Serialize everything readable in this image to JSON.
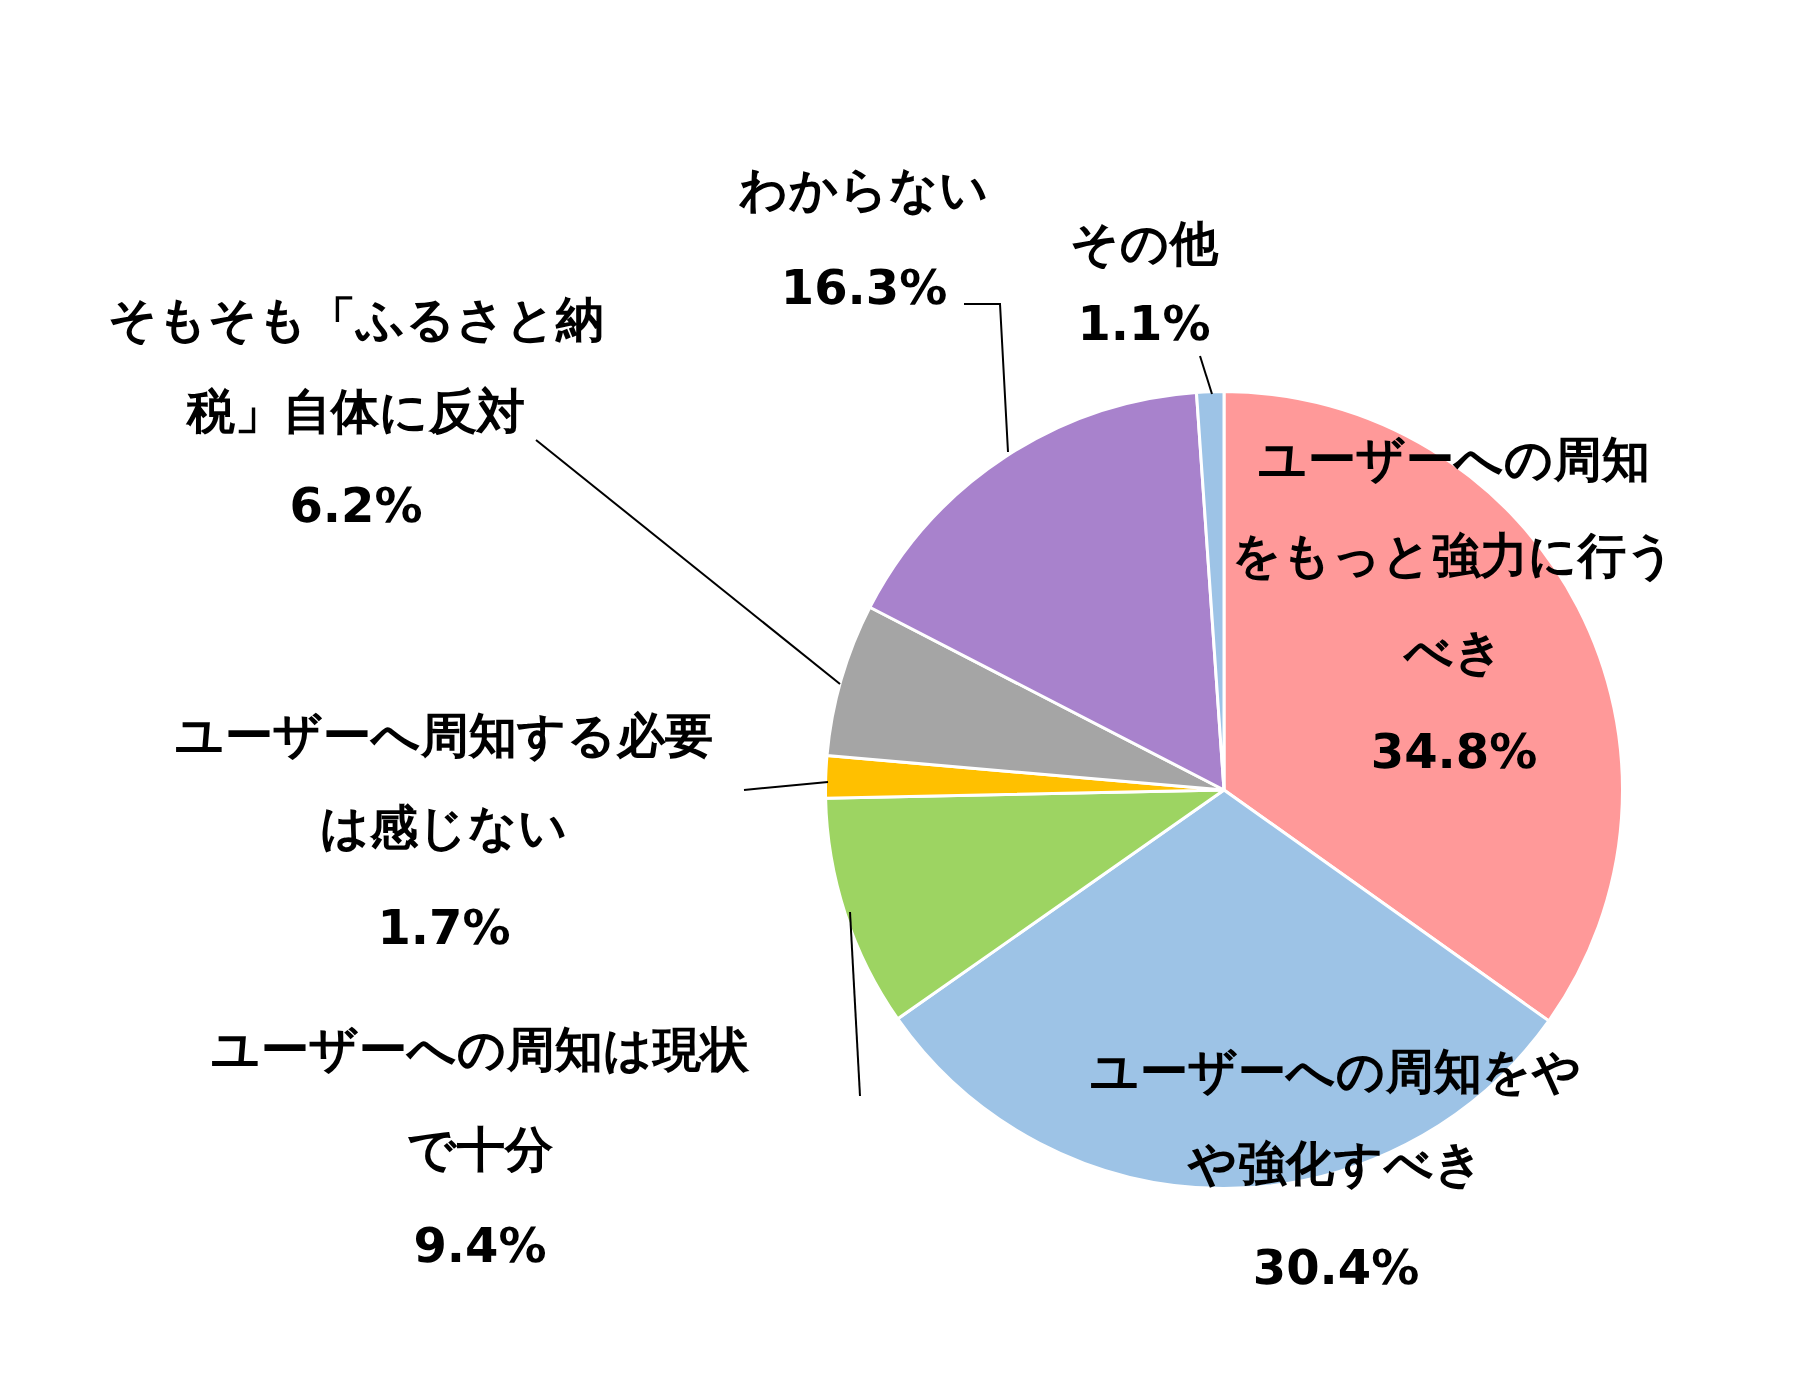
{
  "chart_data": {
    "type": "pie",
    "categories": [
      "ユーザーへの周知をもっと強力に行うべき",
      "ユーザーへの周知をやや強化すべき",
      "ユーザーへの周知は現状で十分",
      "ユーザーへ周知する必要は感じない",
      "そもそも「ふるさと納税」自体に反対",
      "わからない",
      "その他"
    ],
    "values": [
      34.8,
      30.4,
      9.4,
      1.7,
      6.2,
      16.3,
      1.1
    ],
    "value_labels": [
      "34.8%",
      "30.4%",
      "9.4%",
      "1.7%",
      "6.2%",
      "16.3%",
      "1.1%"
    ],
    "colors": [
      "#ff9999",
      "#9dc3e6",
      "#9dd462",
      "#ffc000",
      "#a5a5a5",
      "#a882cc",
      "#9dc3e6"
    ],
    "legend": false
  }
}
